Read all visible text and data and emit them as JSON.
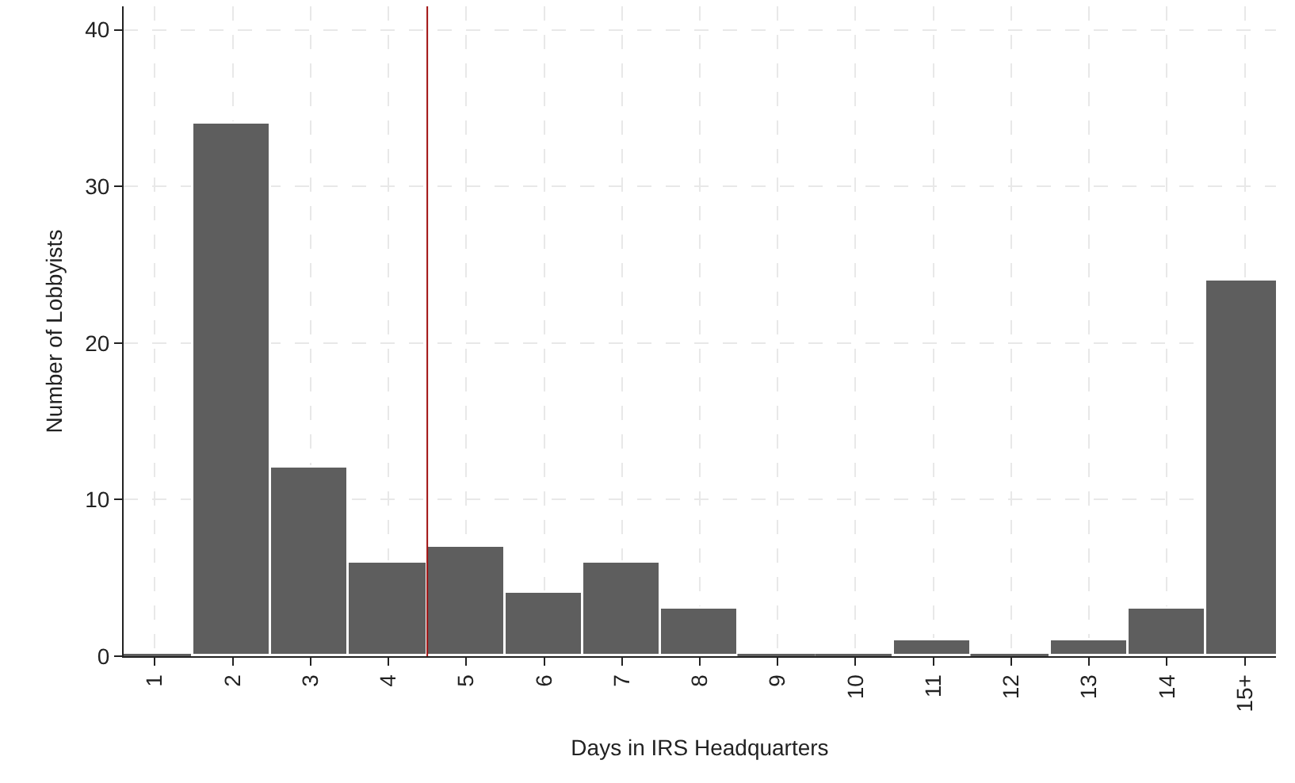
{
  "chart_data": {
    "type": "bar",
    "xlabel": "Days in IRS Headquarters",
    "ylabel": "Number of Lobbyists",
    "x": [
      1,
      2,
      3,
      4,
      5,
      6,
      7,
      8,
      9,
      10,
      11,
      12,
      13,
      14,
      15
    ],
    "values": [
      0,
      34,
      12,
      6,
      7,
      4,
      6,
      3,
      0,
      0,
      1,
      0,
      1,
      3,
      24
    ],
    "color": "#5e5e5e",
    "xlim": [
      0.6,
      15.4
    ],
    "ylim": [
      0,
      41.5
    ],
    "xticks": [
      1,
      2,
      3,
      4,
      5,
      6,
      7,
      8,
      9,
      10,
      11,
      12,
      13,
      14,
      {
        "value": 15,
        "label": "15+"
      }
    ],
    "yticks": [
      0,
      10,
      20,
      30,
      40
    ],
    "ref_lines": [
      {
        "axis": "x",
        "value": 4.5,
        "color": "#a01010"
      }
    ],
    "grid": true
  }
}
